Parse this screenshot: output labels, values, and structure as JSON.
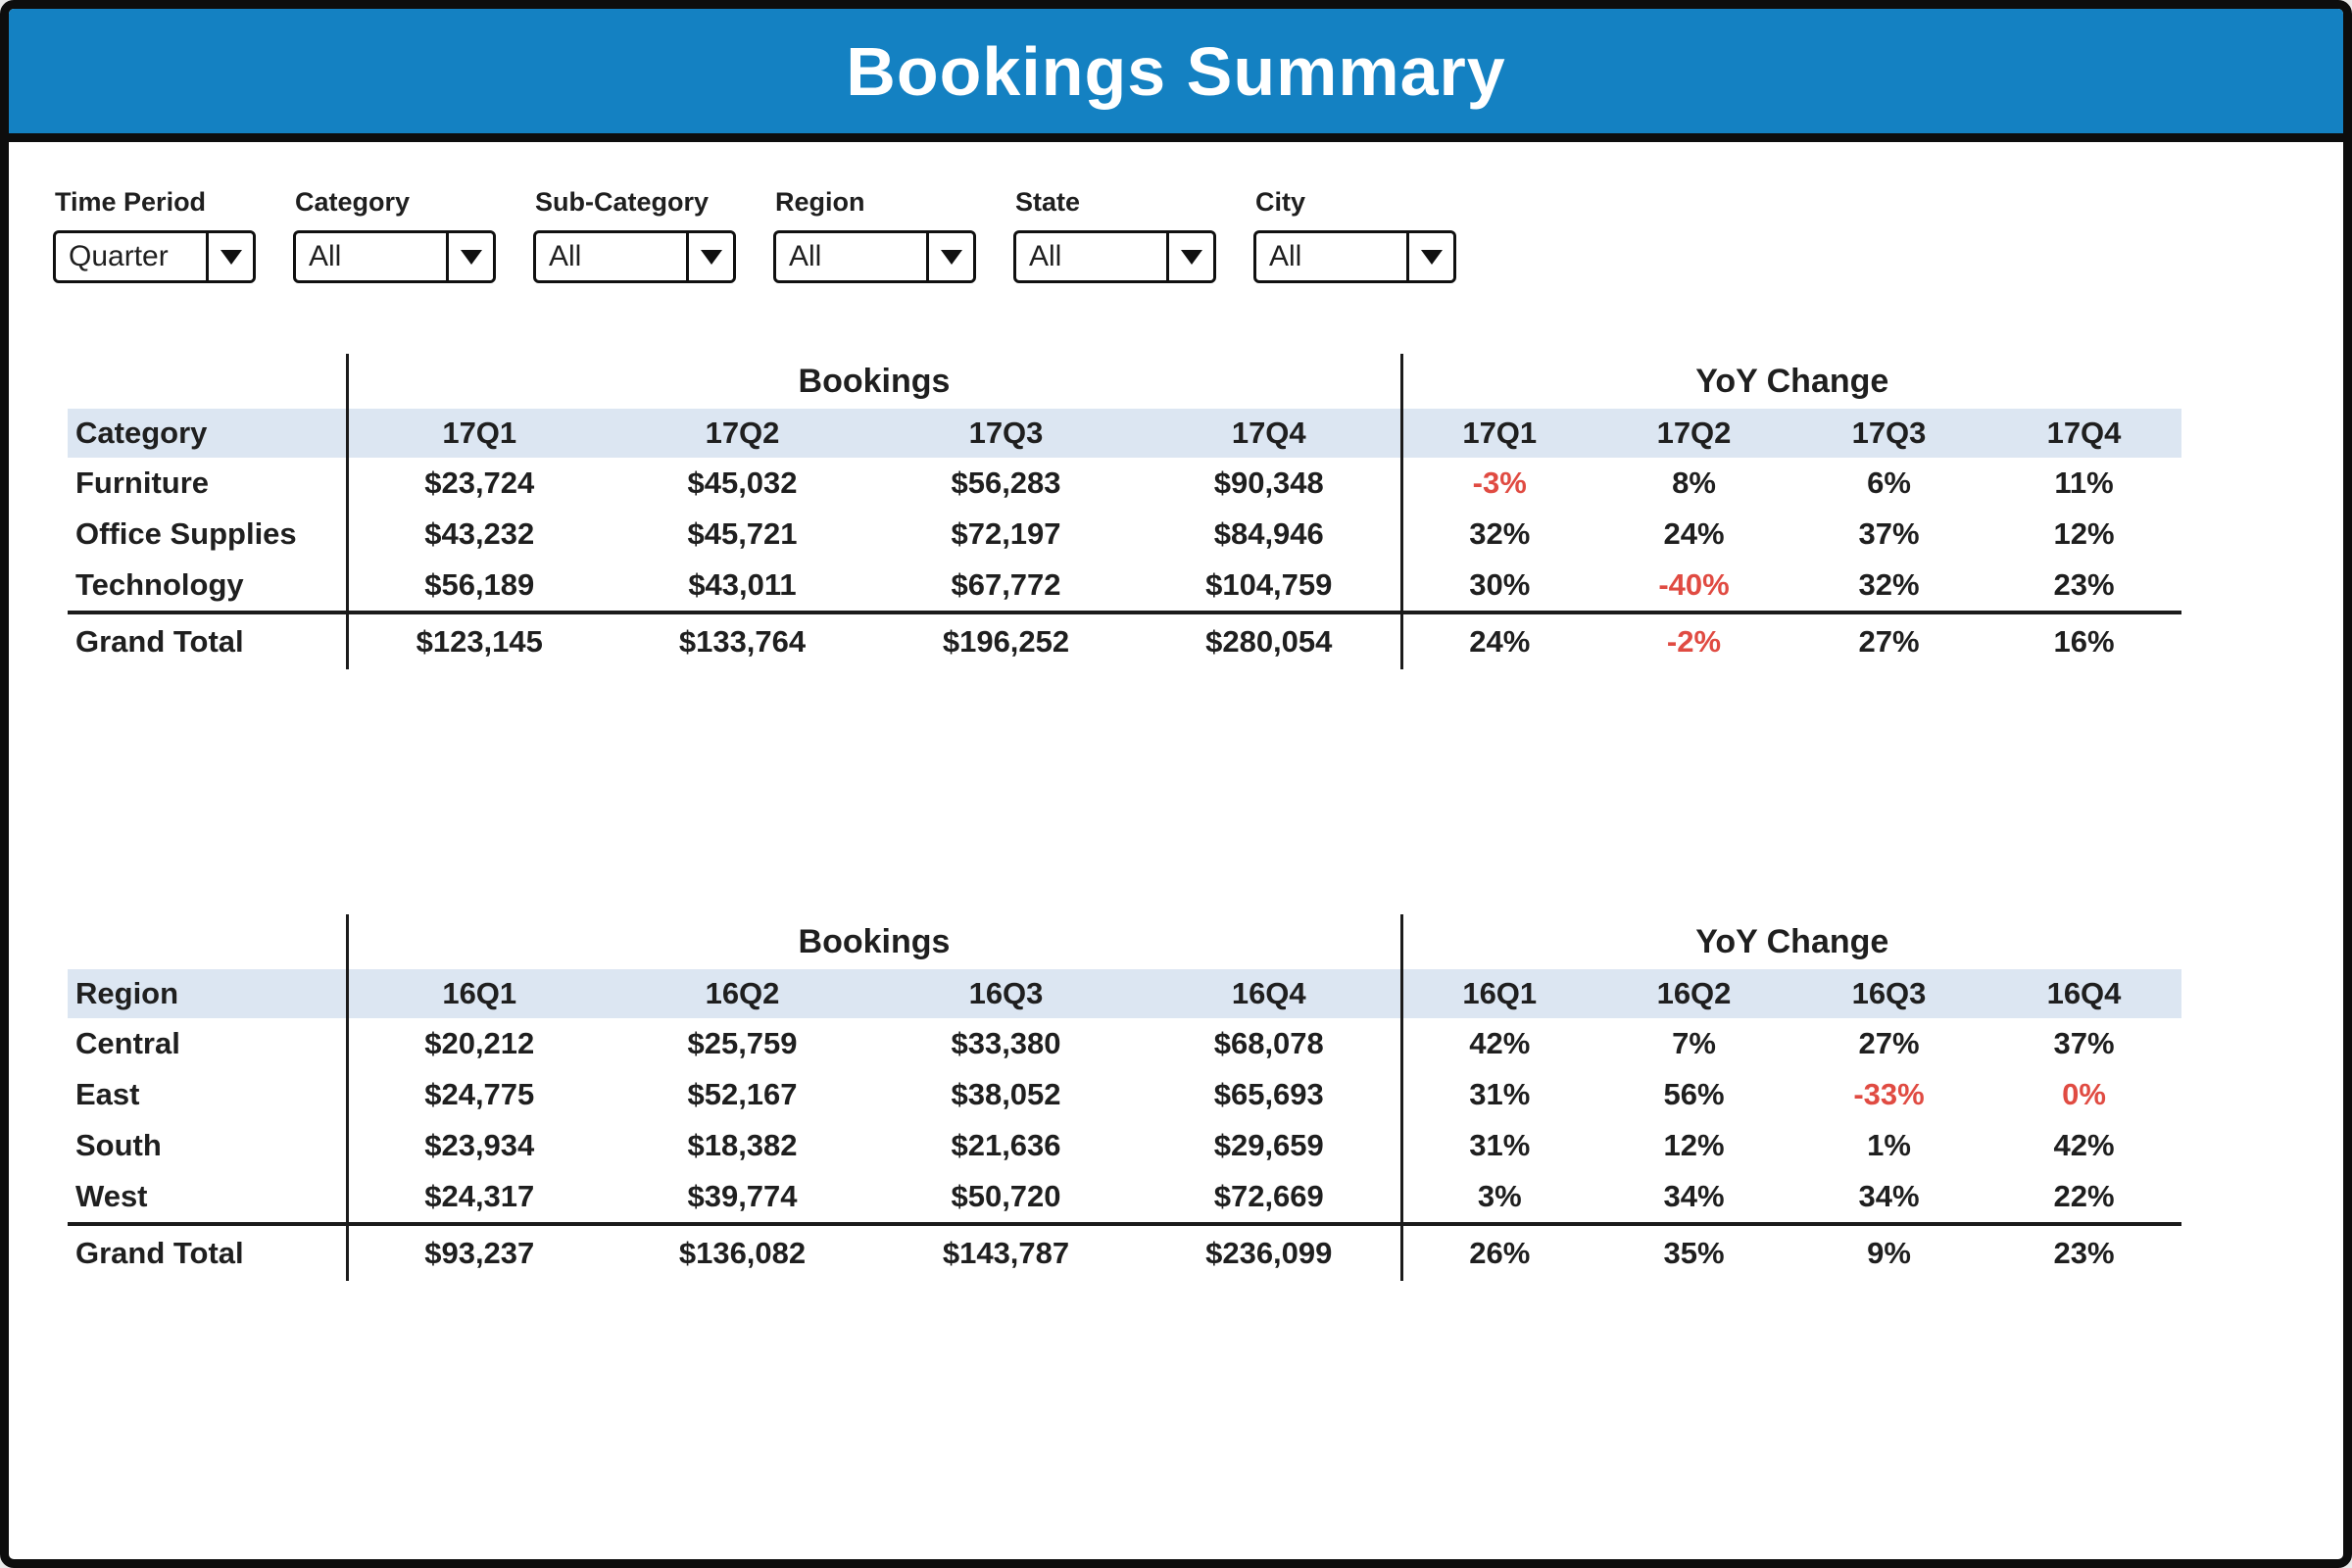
{
  "window": {
    "title": "Bookings Summary"
  },
  "colors": {
    "titlebar_bg": "#1481C2",
    "header_band": "#DCE6F2",
    "negative_red": "#E04B42",
    "text": "#1F1F1F"
  },
  "filters": [
    {
      "label": "Time Period",
      "value": "Quarter"
    },
    {
      "label": "Category",
      "value": "All"
    },
    {
      "label": "Sub-Category",
      "value": "All"
    },
    {
      "label": "Region",
      "value": "All"
    },
    {
      "label": "State",
      "value": "All"
    },
    {
      "label": "City",
      "value": "All"
    }
  ],
  "icons": {
    "dropdown_arrow": "down-triangle"
  },
  "tables": [
    {
      "id": "category",
      "row_dim": "Category",
      "group_headers": [
        "Bookings",
        "YoY Change"
      ],
      "quarters": [
        "17Q1",
        "17Q2",
        "17Q3",
        "17Q4"
      ],
      "rows": [
        {
          "name": "Furniture",
          "bookings": [
            "$23,724",
            "$45,032",
            "$56,283",
            "$90,348"
          ],
          "yoy": [
            {
              "v": "-3%",
              "red": true
            },
            {
              "v": "8%"
            },
            {
              "v": "6%"
            },
            {
              "v": "11%"
            }
          ]
        },
        {
          "name": "Office Supplies",
          "bookings": [
            "$43,232",
            "$45,721",
            "$72,197",
            "$84,946"
          ],
          "yoy": [
            {
              "v": "32%"
            },
            {
              "v": "24%"
            },
            {
              "v": "37%"
            },
            {
              "v": "12%"
            }
          ]
        },
        {
          "name": "Technology",
          "bookings": [
            "$56,189",
            "$43,011",
            "$67,772",
            "$104,759"
          ],
          "yoy": [
            {
              "v": "30%"
            },
            {
              "v": "-40%",
              "red": true
            },
            {
              "v": "32%"
            },
            {
              "v": "23%"
            }
          ]
        }
      ],
      "grand_total": {
        "name": "Grand Total",
        "bookings": [
          "$123,145",
          "$133,764",
          "$196,252",
          "$280,054"
        ],
        "yoy": [
          {
            "v": "24%"
          },
          {
            "v": "-2%",
            "red": true
          },
          {
            "v": "27%"
          },
          {
            "v": "16%"
          }
        ]
      }
    },
    {
      "id": "region",
      "row_dim": "Region",
      "group_headers": [
        "Bookings",
        "YoY Change"
      ],
      "quarters": [
        "16Q1",
        "16Q2",
        "16Q3",
        "16Q4"
      ],
      "rows": [
        {
          "name": "Central",
          "bookings": [
            "$20,212",
            "$25,759",
            "$33,380",
            "$68,078"
          ],
          "yoy": [
            {
              "v": "42%"
            },
            {
              "v": "7%"
            },
            {
              "v": "27%"
            },
            {
              "v": "37%"
            }
          ]
        },
        {
          "name": "East",
          "bookings": [
            "$24,775",
            "$52,167",
            "$38,052",
            "$65,693"
          ],
          "yoy": [
            {
              "v": "31%"
            },
            {
              "v": "56%"
            },
            {
              "v": "-33%",
              "red": true
            },
            {
              "v": "0%",
              "red": true
            }
          ]
        },
        {
          "name": "South",
          "bookings": [
            "$23,934",
            "$18,382",
            "$21,636",
            "$29,659"
          ],
          "yoy": [
            {
              "v": "31%"
            },
            {
              "v": "12%"
            },
            {
              "v": "1%"
            },
            {
              "v": "42%"
            }
          ]
        },
        {
          "name": "West",
          "bookings": [
            "$24,317",
            "$39,774",
            "$50,720",
            "$72,669"
          ],
          "yoy": [
            {
              "v": "3%"
            },
            {
              "v": "34%"
            },
            {
              "v": "34%"
            },
            {
              "v": "22%"
            }
          ]
        }
      ],
      "grand_total": {
        "name": "Grand Total",
        "bookings": [
          "$93,237",
          "$136,082",
          "$143,787",
          "$236,099"
        ],
        "yoy": [
          {
            "v": "26%"
          },
          {
            "v": "35%"
          },
          {
            "v": "9%"
          },
          {
            "v": "23%"
          }
        ]
      }
    }
  ]
}
